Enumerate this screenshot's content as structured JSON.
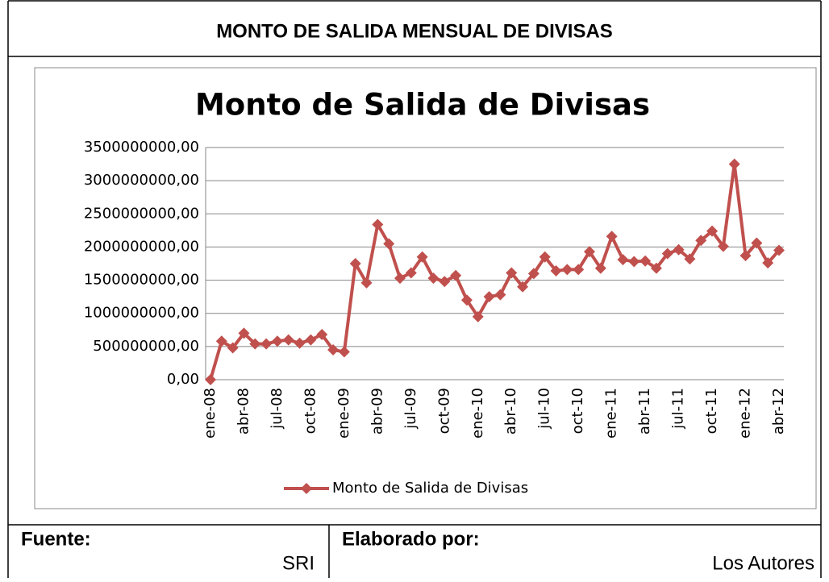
{
  "header": {
    "title": "MONTO DE SALIDA MENSUAL DE DIVISAS"
  },
  "footer": {
    "source_label": "Fuente:",
    "source": "SRI",
    "author_label": "Elaborado por:",
    "author": "Los Autores"
  },
  "chart_data": {
    "type": "line",
    "title": "Monto de Salida de Divisas",
    "categories": [
      "ene-08",
      null,
      null,
      "abr-08",
      null,
      null,
      "jul-08",
      null,
      null,
      "oct-08",
      null,
      null,
      "ene-09",
      null,
      null,
      "abr-09",
      null,
      null,
      "jul-09",
      null,
      null,
      "oct-09",
      null,
      null,
      "ene-10",
      null,
      null,
      "abr-10",
      null,
      null,
      "jul-10",
      null,
      null,
      "oct-10",
      null,
      null,
      "ene-11",
      null,
      null,
      "abr-11",
      null,
      null,
      "jul-11",
      null,
      null,
      "oct-11",
      null,
      null,
      "ene-12",
      null,
      null,
      "abr-12"
    ],
    "series": [
      {
        "name": "Monto de Salida de Divisas",
        "color": "#c0504d",
        "values": [
          0,
          580000000,
          480000000,
          700000000,
          540000000,
          540000000,
          580000000,
          600000000,
          550000000,
          600000000,
          680000000,
          450000000,
          420000000,
          1750000000,
          1460000000,
          2340000000,
          2050000000,
          1530000000,
          1610000000,
          1850000000,
          1530000000,
          1480000000,
          1570000000,
          1200000000,
          950000000,
          1250000000,
          1280000000,
          1610000000,
          1400000000,
          1600000000,
          1850000000,
          1640000000,
          1660000000,
          1660000000,
          1930000000,
          1680000000,
          2160000000,
          1810000000,
          1780000000,
          1790000000,
          1680000000,
          1900000000,
          1960000000,
          1820000000,
          2100000000,
          2240000000,
          2010000000,
          3250000000,
          1870000000,
          2060000000,
          1760000000,
          1950000000
        ]
      }
    ],
    "ylim": [
      0,
      3500000000
    ],
    "yticks": [
      {
        "value": 0,
        "label": "0,00"
      },
      {
        "value": 500000000,
        "label": "500000000,00"
      },
      {
        "value": 1000000000,
        "label": "1000000000,00"
      },
      {
        "value": 1500000000,
        "label": "1500000000,00"
      },
      {
        "value": 2000000000,
        "label": "2000000000,00"
      },
      {
        "value": 2500000000,
        "label": "2500000000,00"
      },
      {
        "value": 3000000000,
        "label": "3000000000,00"
      },
      {
        "value": 3500000000,
        "label": "3500000000,00"
      }
    ],
    "grid": true,
    "legend": "bottom"
  }
}
